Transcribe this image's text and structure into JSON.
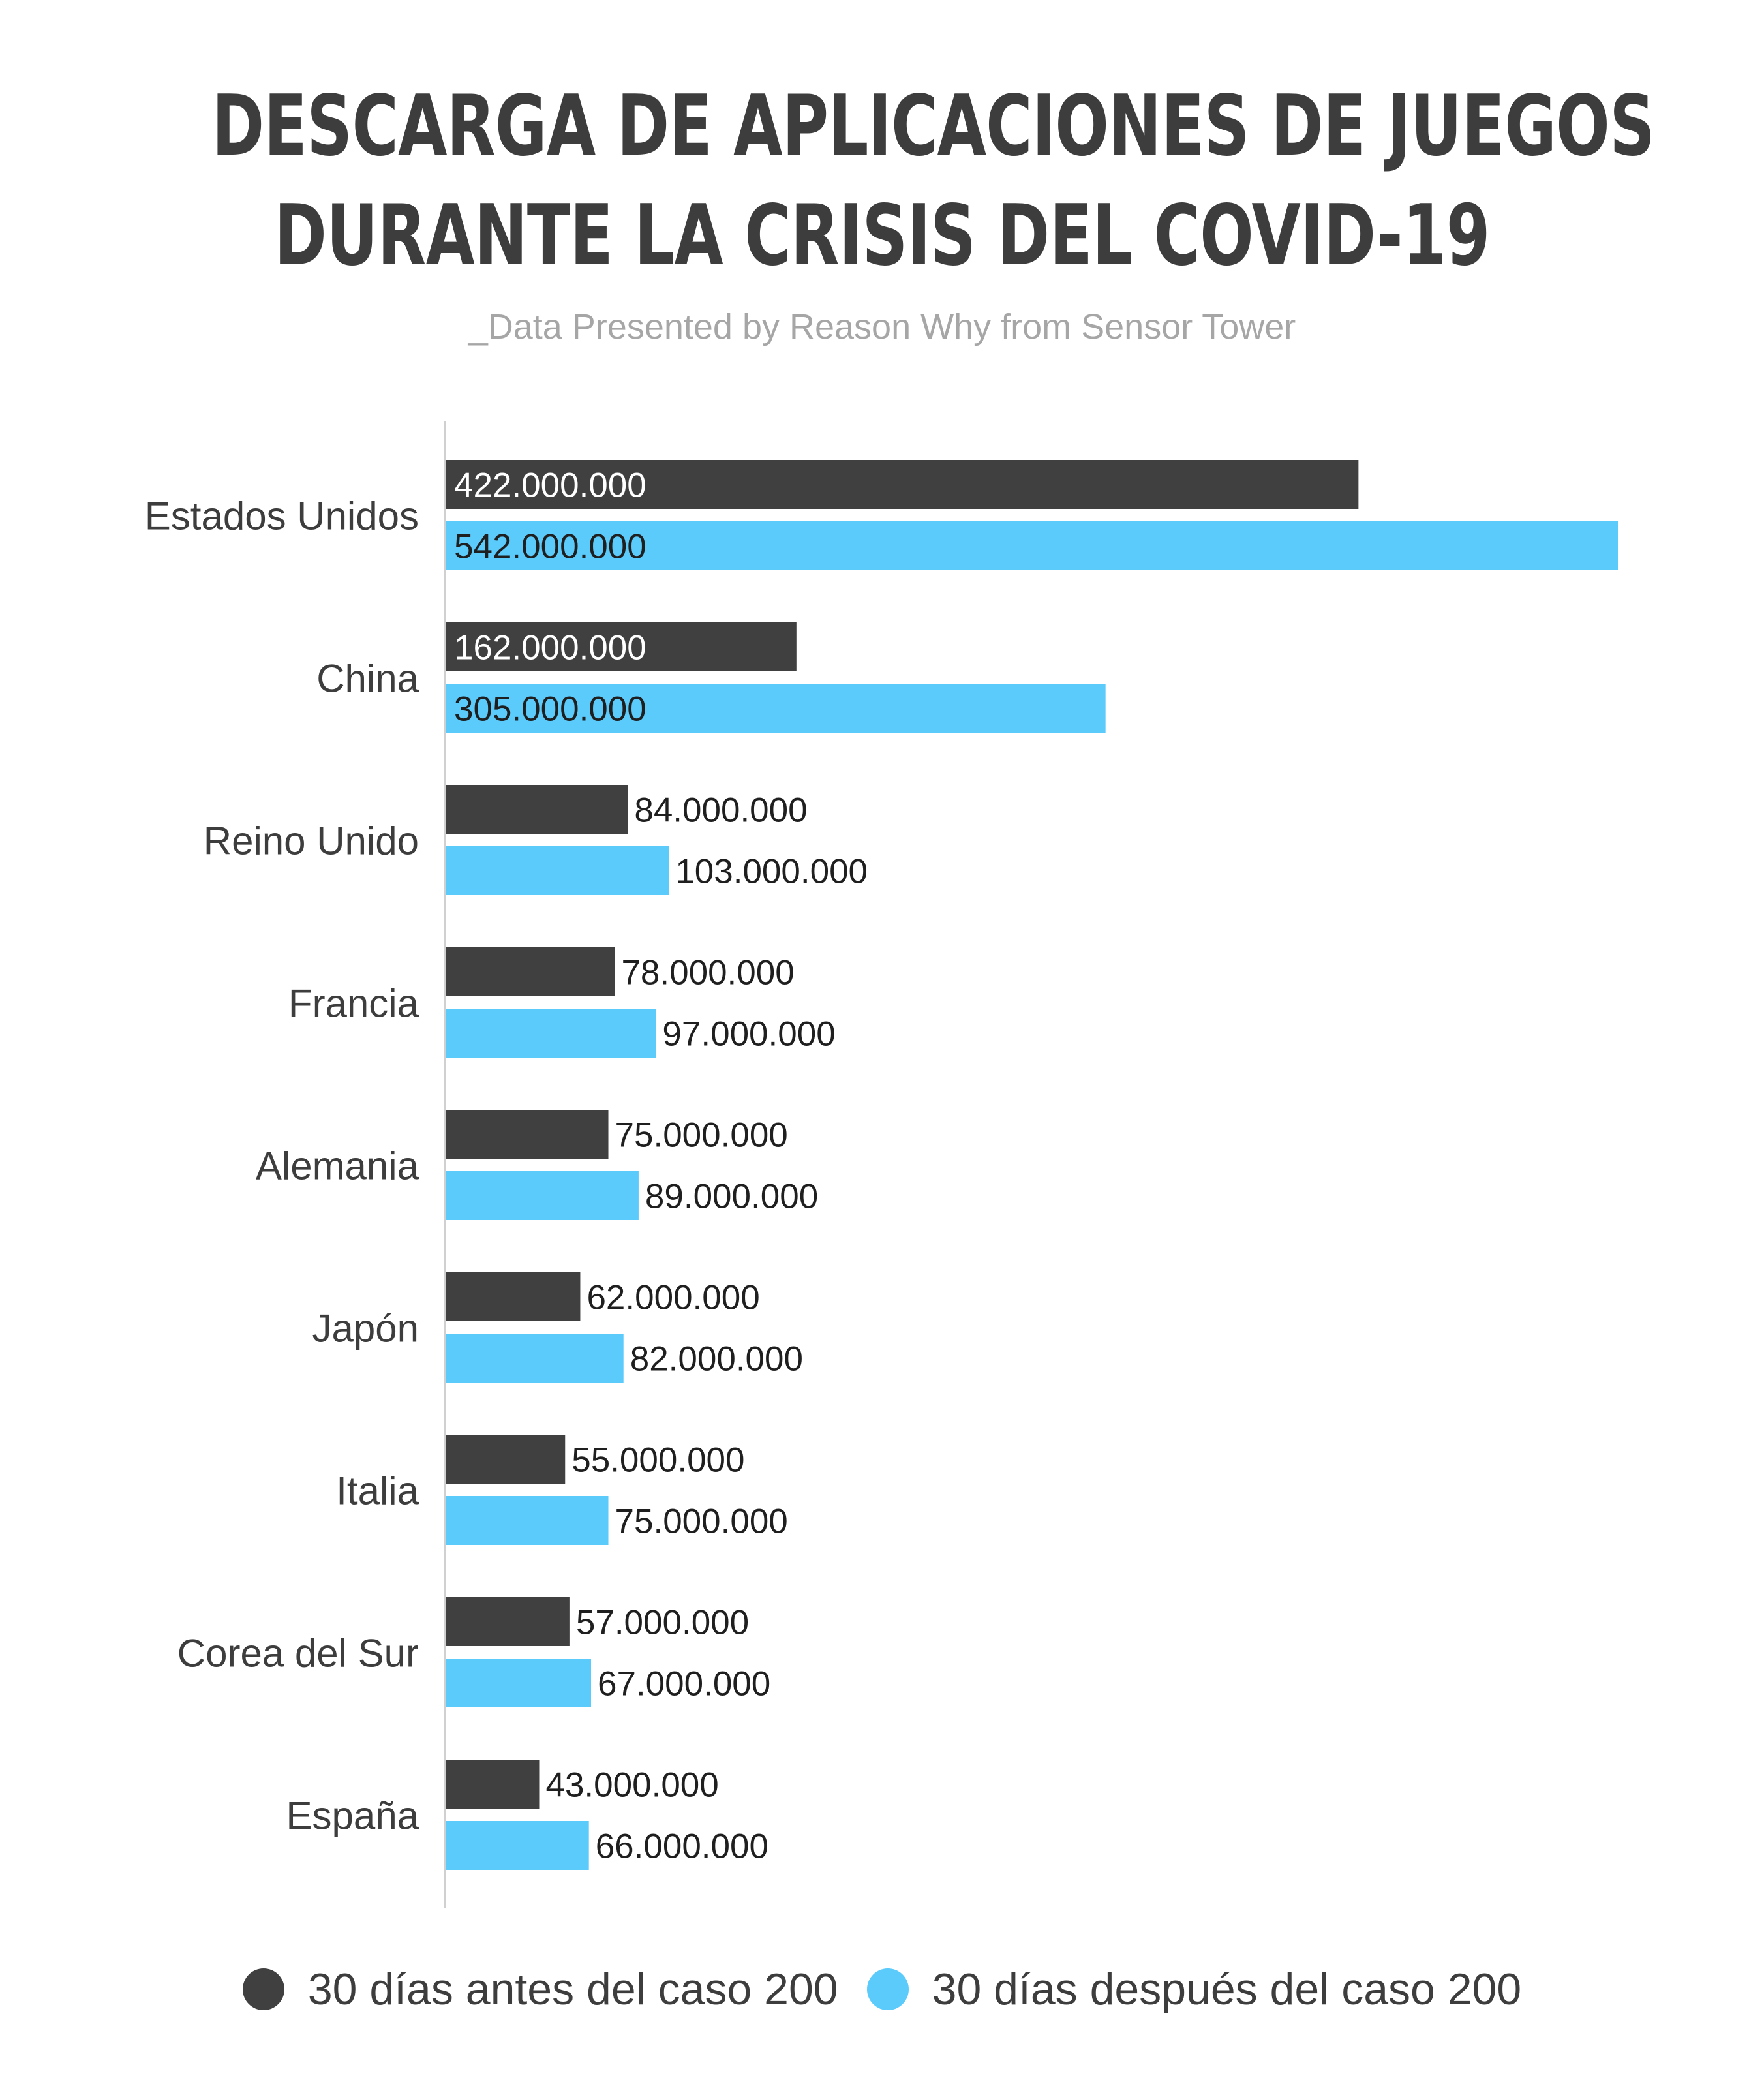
{
  "header": {
    "title_line1": "DESCARGA DE APLICACIONES DE JUEGOS",
    "title_line2": "DURANTE LA CRISIS DEL COVID-19",
    "subtitle": "_Data Presented by Reason Why from Sensor Tower"
  },
  "chart_data": {
    "type": "bar",
    "orientation": "horizontal",
    "categories": [
      "Estados Unidos",
      "China",
      "Reino Unido",
      "Francia",
      "Alemania",
      "Japón",
      "Italia",
      "Corea del Sur",
      "España"
    ],
    "series": [
      {
        "name": "30 días antes del caso 200",
        "color": "#404040",
        "values": [
          422000000,
          162000000,
          84000000,
          78000000,
          75000000,
          62000000,
          55000000,
          57000000,
          43000000
        ],
        "labels": [
          "422.000.000",
          "162.000.000",
          "84.000.000",
          "78.000.000",
          "75.000.000",
          "62.000.000",
          "55.000.000",
          "57.000.000",
          "43.000.000"
        ]
      },
      {
        "name": "30 días después del caso 200",
        "color": "#5bcbfc",
        "values": [
          542000000,
          305000000,
          103000000,
          97000000,
          89000000,
          82000000,
          75000000,
          67000000,
          66000000
        ],
        "labels": [
          "542.000.000",
          "305.000.000",
          "103.000.000",
          "97.000.000",
          "89.000.000",
          "82.000.000",
          "75.000.000",
          "67.000.000",
          "66.000.000"
        ]
      }
    ],
    "xlim": [
      0,
      542000000
    ],
    "grid": false,
    "legend_position": "bottom"
  }
}
